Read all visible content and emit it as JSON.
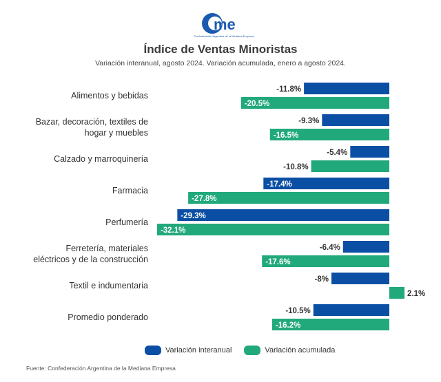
{
  "logo": {
    "text": "cme",
    "subtitle": "Confederación Argentina de la Mediana Empresa"
  },
  "header": {
    "title": "Índice de Ventas Minoristas",
    "subtitle": "Variación interanual, agosto 2024. Variación acumulada, enero a agosto 2024."
  },
  "chart_data": {
    "type": "bar",
    "orientation": "horizontal",
    "categories": [
      [
        "Alimentos y bebidas"
      ],
      [
        "Bazar, decoración, textiles de",
        "hogar y muebles"
      ],
      [
        "Calzado y marroquinería"
      ],
      [
        "Farmacia"
      ],
      [
        "Perfumería"
      ],
      [
        "Ferretería, materiales",
        "eléctricos y de la construcción"
      ],
      [
        "Textil e indumentaria"
      ],
      [
        "Promedio ponderado"
      ]
    ],
    "series": [
      {
        "name": "Variación interanual",
        "color": "#0b4fa4",
        "values": [
          -11.8,
          -9.3,
          -5.4,
          -17.4,
          -29.3,
          -6.4,
          -8,
          -10.5
        ],
        "labels": [
          "-11.8%",
          "-9.3%",
          "-5.4%",
          "-17.4%",
          "-29.3%",
          "-6.4%",
          "-8%",
          "-10.5%"
        ]
      },
      {
        "name": "Variación acumulada",
        "color": "#21a97b",
        "values": [
          -20.5,
          -16.5,
          -10.8,
          -27.8,
          -32.1,
          -17.6,
          2.1,
          -16.2
        ],
        "labels": [
          "-20.5%",
          "-16.5%",
          "-10.8%",
          "-27.8%",
          "-32.1%",
          "-17.6%",
          "2.1%",
          "-16.2%"
        ]
      }
    ],
    "legend": "bottom",
    "grid": false
  },
  "source": "Fuente: Confederación Argentina de la Mediana Empresa"
}
